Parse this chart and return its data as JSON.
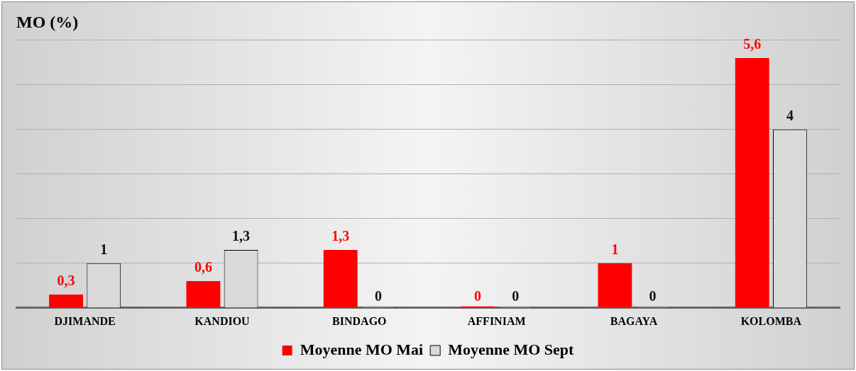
{
  "chart_data": {
    "type": "bar",
    "title": "MO (%)",
    "categories": [
      "DJIMANDE",
      "KANDIOU",
      "BINDAGO",
      "AFFINIAM",
      "BAGAYA",
      "KOLOMBA"
    ],
    "series": [
      {
        "name": "Moyenne MO Mai",
        "color": "#ff0000",
        "values": [
          0.3,
          0.6,
          1.3,
          0,
          1,
          5.6
        ],
        "value_labels": [
          "0,3",
          "0,6",
          "1,3",
          "0",
          "1",
          "5,6"
        ]
      },
      {
        "name": "Moyenne MO Sept",
        "color": "#d9d9d9",
        "values": [
          1,
          1.3,
          0,
          0,
          0,
          4
        ],
        "value_labels": [
          "1",
          "1,3",
          "0",
          "0",
          "0",
          "4"
        ]
      }
    ],
    "tick_labels": "x",
    "grid": "y",
    "legend": "bottom"
  }
}
